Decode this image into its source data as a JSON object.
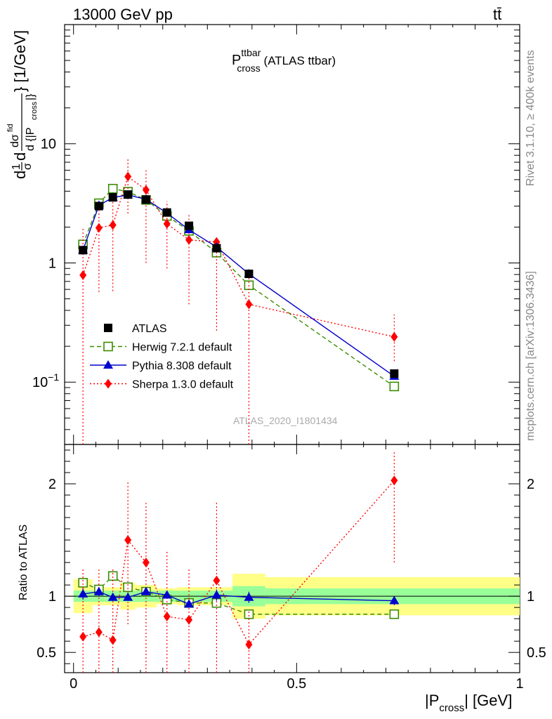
{
  "header": {
    "left": "13000 GeV pp",
    "right": "tt̄"
  },
  "side_labels": {
    "rivet": "Rivet 3.1.10, ≥ 400k events",
    "mcplots": "mcplots.cern.ch [arXiv:1306.3436]"
  },
  "chart_data": {
    "type": "line",
    "title": "P^{ttbar}_{cross} (ATLAS ttbar)",
    "title_main": "P",
    "title_sup": "ttbar",
    "title_sub": "cross",
    "title_tail": " (ATLAS ttbar)",
    "analysis_tag": "ATLAS_2020_I1801434",
    "xlabel": {
      "pre": "|P",
      "sub": "cross",
      "post": "| [GeV]"
    },
    "ylabel_ratio": "Ratio to ATLAS",
    "xlim": [
      -0.02,
      1.0
    ],
    "ylim_main": [
      0.03,
      100
    ],
    "ylim_ratio": [
      0.32,
      2.35
    ],
    "ylog_main": true,
    "x_ticks": [
      {
        "v": 0,
        "label": "0"
      },
      {
        "v": 0.5,
        "label": "0.5"
      },
      {
        "v": 1,
        "label": "1"
      }
    ],
    "y_ticks_main": [
      {
        "v": 0.1,
        "label": "10",
        "sup": "−1"
      },
      {
        "v": 1,
        "label": "1"
      },
      {
        "v": 10,
        "label": "10"
      }
    ],
    "y_ticks_ratio": [
      {
        "v": 0.5,
        "label": "0.5"
      },
      {
        "v": 1,
        "label": "1"
      },
      {
        "v": 2,
        "label": "2"
      }
    ],
    "x": [
      0.0212,
      0.0569,
      0.0881,
      0.1219,
      0.1625,
      0.2094,
      0.2587,
      0.3206,
      0.3931,
      0.7188
    ],
    "series": [
      {
        "name": "ATLAS",
        "color": "#000000",
        "marker": "square",
        "values": [
          1.28,
          3.0,
          3.55,
          3.75,
          3.4,
          2.65,
          2.05,
          1.33,
          0.81,
          0.118
        ],
        "yerr": [
          0.03,
          0.06,
          0.07,
          0.07,
          0.07,
          0.06,
          0.05,
          0.04,
          0.03,
          0.006
        ],
        "ratio": [
          1,
          1,
          1,
          1,
          1,
          1,
          1,
          1,
          1,
          1
        ]
      },
      {
        "name": "Herwig 7.2.1 default",
        "color": "#3a8c00",
        "marker": "open-square",
        "values": [
          1.43,
          3.17,
          4.2,
          3.96,
          3.38,
          2.48,
          1.86,
          1.22,
          0.65,
          0.092
        ],
        "ratio": [
          1.12,
          1.06,
          1.18,
          1.08,
          1.04,
          0.97,
          0.94,
          0.94,
          0.84,
          0.84
        ],
        "ratio_err": [
          0.03,
          0.02,
          0.02,
          0.02,
          0.02,
          0.02,
          0.02,
          0.03,
          0.03,
          0.03
        ]
      },
      {
        "name": "Pythia 8.308 default",
        "color": "#0000cc",
        "marker": "triangle",
        "values": [
          1.28,
          3.04,
          3.54,
          3.72,
          3.42,
          2.62,
          1.9,
          1.36,
          0.81,
          0.112
        ],
        "ratio": [
          1.02,
          1.04,
          0.99,
          0.99,
          1.04,
          1.01,
          0.93,
          1.01,
          0.99,
          0.96
        ],
        "ratio_err": [
          0.05,
          0.04,
          0.03,
          0.03,
          0.03,
          0.03,
          0.03,
          0.05,
          0.05,
          0.04
        ]
      },
      {
        "name": "Sherpa 1.3.0 default",
        "color": "#ff0000",
        "marker": "diamond",
        "values": [
          0.79,
          1.97,
          2.08,
          5.3,
          4.1,
          2.13,
          1.56,
          1.5,
          0.45,
          0.24
        ],
        "y_lo": [
          0.02,
          0.57,
          0.58,
          2.6,
          1.0,
          0.9,
          0.45,
          0.27,
          0.02,
          0.15
        ],
        "y_hi": [
          2.0,
          2.9,
          3.3,
          7.6,
          6.0,
          3.3,
          2.6,
          1.6,
          0.8,
          0.37
        ],
        "ratio": [
          0.64,
          0.68,
          0.61,
          1.5,
          1.3,
          0.82,
          0.79,
          1.14,
          0.57,
          2.03
        ],
        "ratio_lo": [
          0.3,
          0.3,
          0.3,
          0.75,
          0.3,
          0.3,
          0.3,
          0.3,
          0.3,
          1.3
        ],
        "ratio_hi": [
          1.25,
          1.25,
          1.25,
          2.03,
          1.83,
          1.4,
          1.25,
          1.85,
          0.87,
          2.3
        ]
      }
    ],
    "bins": [
      {
        "lo": 0.0,
        "hi": 0.0425,
        "stat": 0.05,
        "tot": 0.15
      },
      {
        "lo": 0.0425,
        "hi": 0.0712,
        "stat": 0.05,
        "tot": 0.08
      },
      {
        "lo": 0.0712,
        "hi": 0.105,
        "stat": 0.05,
        "tot": 0.08
      },
      {
        "lo": 0.105,
        "hi": 0.1387,
        "stat": 0.05,
        "tot": 0.12
      },
      {
        "lo": 0.1387,
        "hi": 0.1862,
        "stat": 0.05,
        "tot": 0.1
      },
      {
        "lo": 0.1862,
        "hi": 0.2325,
        "stat": 0.05,
        "tot": 0.07
      },
      {
        "lo": 0.2325,
        "hi": 0.2862,
        "stat": 0.05,
        "tot": 0.08
      },
      {
        "lo": 0.2862,
        "hi": 0.3562,
        "stat": 0.05,
        "tot": 0.08
      },
      {
        "lo": 0.3562,
        "hi": 0.43,
        "stat": 0.09,
        "tot": 0.2
      },
      {
        "lo": 0.43,
        "hi": 1.0,
        "stat": 0.07,
        "tot": 0.17
      }
    ],
    "band_colors": {
      "stat": "#99ff99",
      "tot": "#ffff88"
    }
  }
}
